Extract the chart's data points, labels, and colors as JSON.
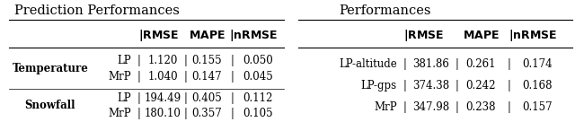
{
  "left_title": "Prediction Performances",
  "right_title": "Performances",
  "left_col_headers": [
    "",
    "RMSE",
    "MAPE",
    "nRMSE"
  ],
  "right_col_headers": [
    "",
    "RMSE",
    "MAPE",
    "nRMSE"
  ],
  "left_rows": [
    [
      "Temperature",
      "LP",
      "1.120",
      "0.155",
      "0.050"
    ],
    [
      "",
      "MrP",
      "1.040",
      "0.147",
      "0.045"
    ],
    [
      "Snowfall",
      "LP",
      "194.49",
      "0.405",
      "0.112"
    ],
    [
      "",
      "MrP",
      "180.10",
      "0.357",
      "0.105"
    ]
  ],
  "right_rows": [
    [
      "LP-altitude",
      "381.86",
      "0.261",
      "0.174"
    ],
    [
      "LP-gps",
      "374.38",
      "0.242",
      "0.168"
    ],
    [
      "MrP",
      "347.98",
      "0.238",
      "0.157"
    ]
  ],
  "background_color": "#ffffff"
}
